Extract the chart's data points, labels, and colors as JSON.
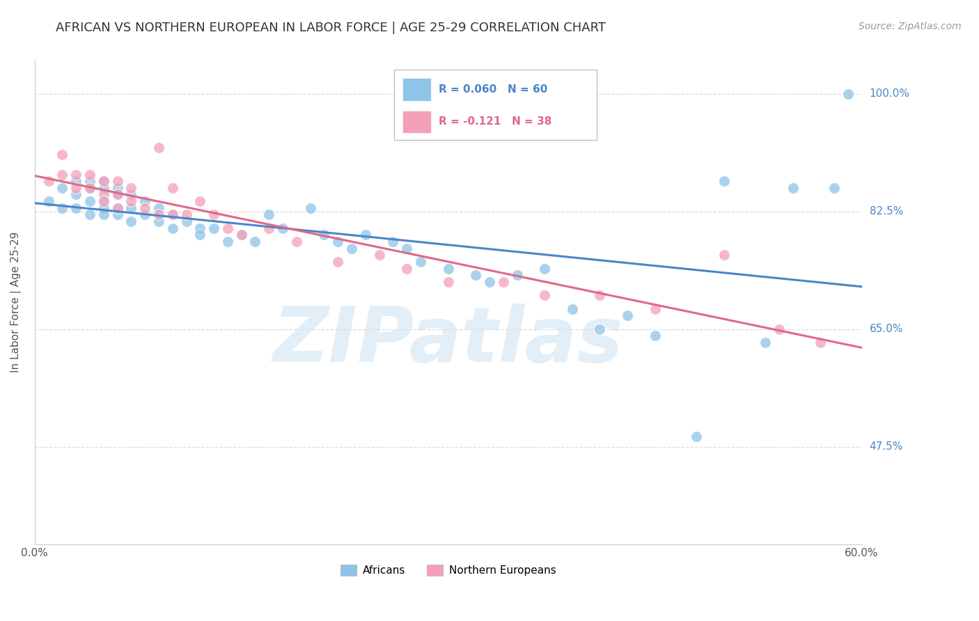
{
  "title": "AFRICAN VS NORTHERN EUROPEAN IN LABOR FORCE | AGE 25-29 CORRELATION CHART",
  "source": "Source: ZipAtlas.com",
  "ylabel": "In Labor Force | Age 25-29",
  "ytick_labels": [
    "100.0%",
    "82.5%",
    "65.0%",
    "47.5%"
  ],
  "ytick_values": [
    1.0,
    0.825,
    0.65,
    0.475
  ],
  "xlim": [
    0.0,
    0.6
  ],
  "ylim": [
    0.33,
    1.05
  ],
  "background_color": "#ffffff",
  "grid_color": "#dddddd",
  "watermark": "ZIPatlas",
  "blue_color": "#8ec4e8",
  "pink_color": "#f4a0b8",
  "blue_line_color": "#4a86c8",
  "pink_line_color": "#e06888",
  "legend_r_blue": "R = 0.060",
  "legend_n_blue": "N = 60",
  "legend_r_pink": "R = -0.121",
  "legend_n_pink": "N = 38",
  "blue_scatter_x": [
    0.01,
    0.02,
    0.02,
    0.03,
    0.03,
    0.03,
    0.04,
    0.04,
    0.04,
    0.04,
    0.05,
    0.05,
    0.05,
    0.05,
    0.05,
    0.06,
    0.06,
    0.06,
    0.06,
    0.07,
    0.07,
    0.07,
    0.08,
    0.08,
    0.09,
    0.09,
    0.1,
    0.1,
    0.11,
    0.12,
    0.12,
    0.13,
    0.14,
    0.15,
    0.16,
    0.17,
    0.18,
    0.2,
    0.21,
    0.22,
    0.23,
    0.24,
    0.26,
    0.27,
    0.28,
    0.3,
    0.32,
    0.33,
    0.35,
    0.37,
    0.39,
    0.41,
    0.43,
    0.45,
    0.48,
    0.5,
    0.53,
    0.55,
    0.58,
    0.59
  ],
  "blue_scatter_y": [
    0.84,
    0.86,
    0.83,
    0.87,
    0.85,
    0.83,
    0.87,
    0.86,
    0.84,
    0.82,
    0.87,
    0.86,
    0.84,
    0.83,
    0.82,
    0.86,
    0.85,
    0.83,
    0.82,
    0.85,
    0.83,
    0.81,
    0.84,
    0.82,
    0.83,
    0.81,
    0.82,
    0.8,
    0.81,
    0.8,
    0.79,
    0.8,
    0.78,
    0.79,
    0.78,
    0.82,
    0.8,
    0.83,
    0.79,
    0.78,
    0.77,
    0.79,
    0.78,
    0.77,
    0.75,
    0.74,
    0.73,
    0.72,
    0.73,
    0.74,
    0.68,
    0.65,
    0.67,
    0.64,
    0.49,
    0.87,
    0.63,
    0.86,
    0.86,
    1.0
  ],
  "pink_scatter_x": [
    0.01,
    0.02,
    0.02,
    0.03,
    0.03,
    0.04,
    0.04,
    0.05,
    0.05,
    0.05,
    0.06,
    0.06,
    0.06,
    0.07,
    0.07,
    0.08,
    0.09,
    0.09,
    0.1,
    0.1,
    0.11,
    0.12,
    0.13,
    0.14,
    0.15,
    0.17,
    0.19,
    0.22,
    0.25,
    0.27,
    0.3,
    0.34,
    0.37,
    0.41,
    0.45,
    0.5,
    0.54,
    0.57
  ],
  "pink_scatter_y": [
    0.87,
    0.91,
    0.88,
    0.88,
    0.86,
    0.88,
    0.86,
    0.87,
    0.85,
    0.84,
    0.87,
    0.85,
    0.83,
    0.86,
    0.84,
    0.83,
    0.92,
    0.82,
    0.86,
    0.82,
    0.82,
    0.84,
    0.82,
    0.8,
    0.79,
    0.8,
    0.78,
    0.75,
    0.76,
    0.74,
    0.72,
    0.72,
    0.7,
    0.7,
    0.68,
    0.76,
    0.65,
    0.63
  ]
}
